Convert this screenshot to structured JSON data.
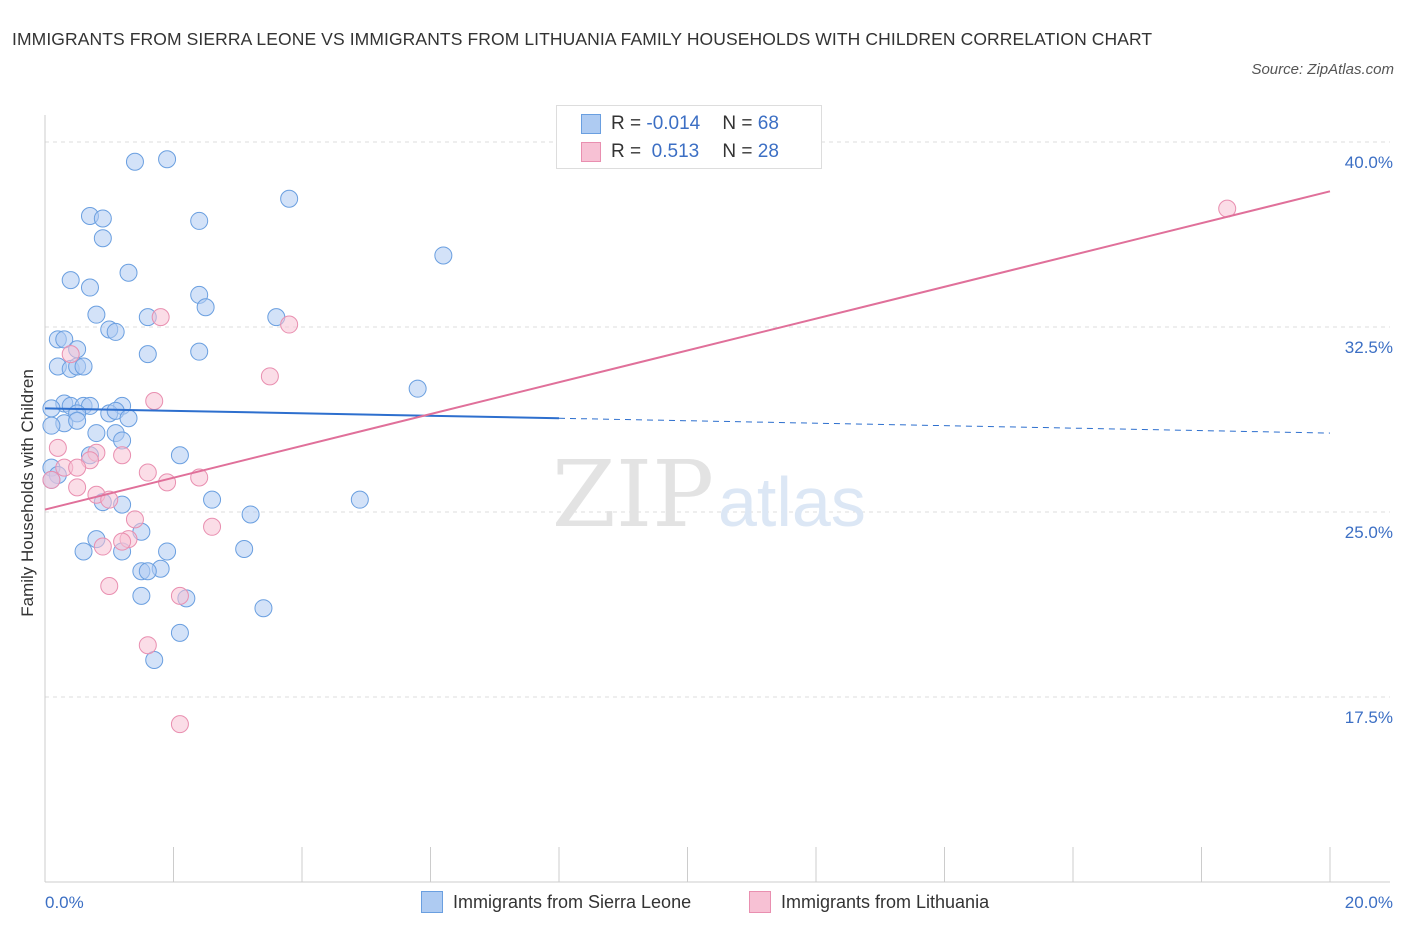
{
  "title": "IMMIGRANTS FROM SIERRA LEONE VS IMMIGRANTS FROM LITHUANIA FAMILY HOUSEHOLDS WITH CHILDREN CORRELATION CHART",
  "source": "Source: ZipAtlas.com",
  "watermark": {
    "zip": "ZIP",
    "atlas": "atlas"
  },
  "colors": {
    "blue_fill": "#aecbf2",
    "blue_stroke": "#6a9fe0",
    "blue_line": "#2d6fce",
    "pink_fill": "#f7c1d4",
    "pink_stroke": "#e98fb0",
    "pink_line": "#e0709a",
    "axis_label": "#3c6fc4",
    "grid": "#dddddd"
  },
  "legend": {
    "rows": [
      {
        "r_label": "R = ",
        "r_value": "-0.014",
        "n_label": "N = ",
        "n_value": "68"
      },
      {
        "r_label": "R = ",
        "r_value": " 0.513",
        "n_label": "N = ",
        "n_value": "28"
      }
    ]
  },
  "chart_data": {
    "type": "scatter",
    "title": "IMMIGRANTS FROM SIERRA LEONE VS IMMIGRANTS FROM LITHUANIA FAMILY HOUSEHOLDS WITH CHILDREN CORRELATION CHART",
    "xlabel": "",
    "ylabel": "Family Households with Children",
    "xlim": [
      0,
      20
    ],
    "ylim": [
      10,
      41.5
    ],
    "x_tick_labels": [
      "0.0%",
      "20.0%"
    ],
    "y_ticks": [
      17.5,
      25.0,
      32.5,
      40.0
    ],
    "y_tick_labels": [
      "17.5%",
      "25.0%",
      "32.5%",
      "40.0%"
    ],
    "grid": true,
    "legend_position": "top-center",
    "series": [
      {
        "name": "Immigrants from Sierra Leone",
        "color": "#6a9fe0",
        "r": -0.014,
        "n": 68,
        "trend": {
          "x0": 0.0,
          "y0": 29.2,
          "x1": 8.0,
          "y1": 28.8,
          "dash_x1": 20.0,
          "dash_y1": 28.2
        },
        "points": [
          [
            1.4,
            39.2
          ],
          [
            1.9,
            39.3
          ],
          [
            0.7,
            37.0
          ],
          [
            0.9,
            36.9
          ],
          [
            2.4,
            36.8
          ],
          [
            3.8,
            37.7
          ],
          [
            0.9,
            36.1
          ],
          [
            6.2,
            35.4
          ],
          [
            1.3,
            34.7
          ],
          [
            0.4,
            34.4
          ],
          [
            0.7,
            34.1
          ],
          [
            2.4,
            33.8
          ],
          [
            2.5,
            33.3
          ],
          [
            0.8,
            33.0
          ],
          [
            1.6,
            32.9
          ],
          [
            3.6,
            32.9
          ],
          [
            1.0,
            32.4
          ],
          [
            1.1,
            32.3
          ],
          [
            0.2,
            32.0
          ],
          [
            0.3,
            32.0
          ],
          [
            0.5,
            31.6
          ],
          [
            1.6,
            31.4
          ],
          [
            2.4,
            31.5
          ],
          [
            0.2,
            30.9
          ],
          [
            0.4,
            30.8
          ],
          [
            0.5,
            30.9
          ],
          [
            0.6,
            30.9
          ],
          [
            5.8,
            30.0
          ],
          [
            0.3,
            29.4
          ],
          [
            0.1,
            29.2
          ],
          [
            0.4,
            29.3
          ],
          [
            0.6,
            29.3
          ],
          [
            0.7,
            29.3
          ],
          [
            1.2,
            29.3
          ],
          [
            0.5,
            29.0
          ],
          [
            1.0,
            29.0
          ],
          [
            1.1,
            29.1
          ],
          [
            1.3,
            28.8
          ],
          [
            0.3,
            28.6
          ],
          [
            0.5,
            28.7
          ],
          [
            0.1,
            28.5
          ],
          [
            0.8,
            28.2
          ],
          [
            1.1,
            28.2
          ],
          [
            1.2,
            27.9
          ],
          [
            0.7,
            27.3
          ],
          [
            2.1,
            27.3
          ],
          [
            0.1,
            26.8
          ],
          [
            0.2,
            26.5
          ],
          [
            0.1,
            26.3
          ],
          [
            0.9,
            25.4
          ],
          [
            1.2,
            25.3
          ],
          [
            2.6,
            25.5
          ],
          [
            4.9,
            25.5
          ],
          [
            3.2,
            24.9
          ],
          [
            1.5,
            24.2
          ],
          [
            0.8,
            23.9
          ],
          [
            0.6,
            23.4
          ],
          [
            1.2,
            23.4
          ],
          [
            1.9,
            23.4
          ],
          [
            3.1,
            23.5
          ],
          [
            1.8,
            22.7
          ],
          [
            1.5,
            22.6
          ],
          [
            1.6,
            22.6
          ],
          [
            1.5,
            21.6
          ],
          [
            2.2,
            21.5
          ],
          [
            3.4,
            21.1
          ],
          [
            2.1,
            20.1
          ],
          [
            1.7,
            19.0
          ]
        ]
      },
      {
        "name": "Immigrants from Lithuania",
        "color": "#e98fb0",
        "r": 0.513,
        "n": 28,
        "trend": {
          "x0": 0.0,
          "y0": 25.1,
          "x1": 20.0,
          "y1": 38.0
        },
        "points": [
          [
            18.4,
            37.3
          ],
          [
            1.8,
            32.9
          ],
          [
            3.8,
            32.6
          ],
          [
            0.4,
            31.4
          ],
          [
            3.5,
            30.5
          ],
          [
            1.7,
            29.5
          ],
          [
            0.2,
            27.6
          ],
          [
            0.8,
            27.4
          ],
          [
            1.2,
            27.3
          ],
          [
            0.7,
            27.1
          ],
          [
            0.3,
            26.8
          ],
          [
            0.5,
            26.8
          ],
          [
            1.6,
            26.6
          ],
          [
            2.4,
            26.4
          ],
          [
            0.1,
            26.3
          ],
          [
            1.9,
            26.2
          ],
          [
            0.5,
            26.0
          ],
          [
            0.8,
            25.7
          ],
          [
            1.0,
            25.5
          ],
          [
            1.4,
            24.7
          ],
          [
            2.6,
            24.4
          ],
          [
            1.3,
            23.9
          ],
          [
            1.2,
            23.8
          ],
          [
            0.9,
            23.6
          ],
          [
            1.0,
            22.0
          ],
          [
            2.1,
            21.6
          ],
          [
            1.6,
            19.6
          ],
          [
            2.1,
            16.4
          ]
        ]
      }
    ]
  }
}
